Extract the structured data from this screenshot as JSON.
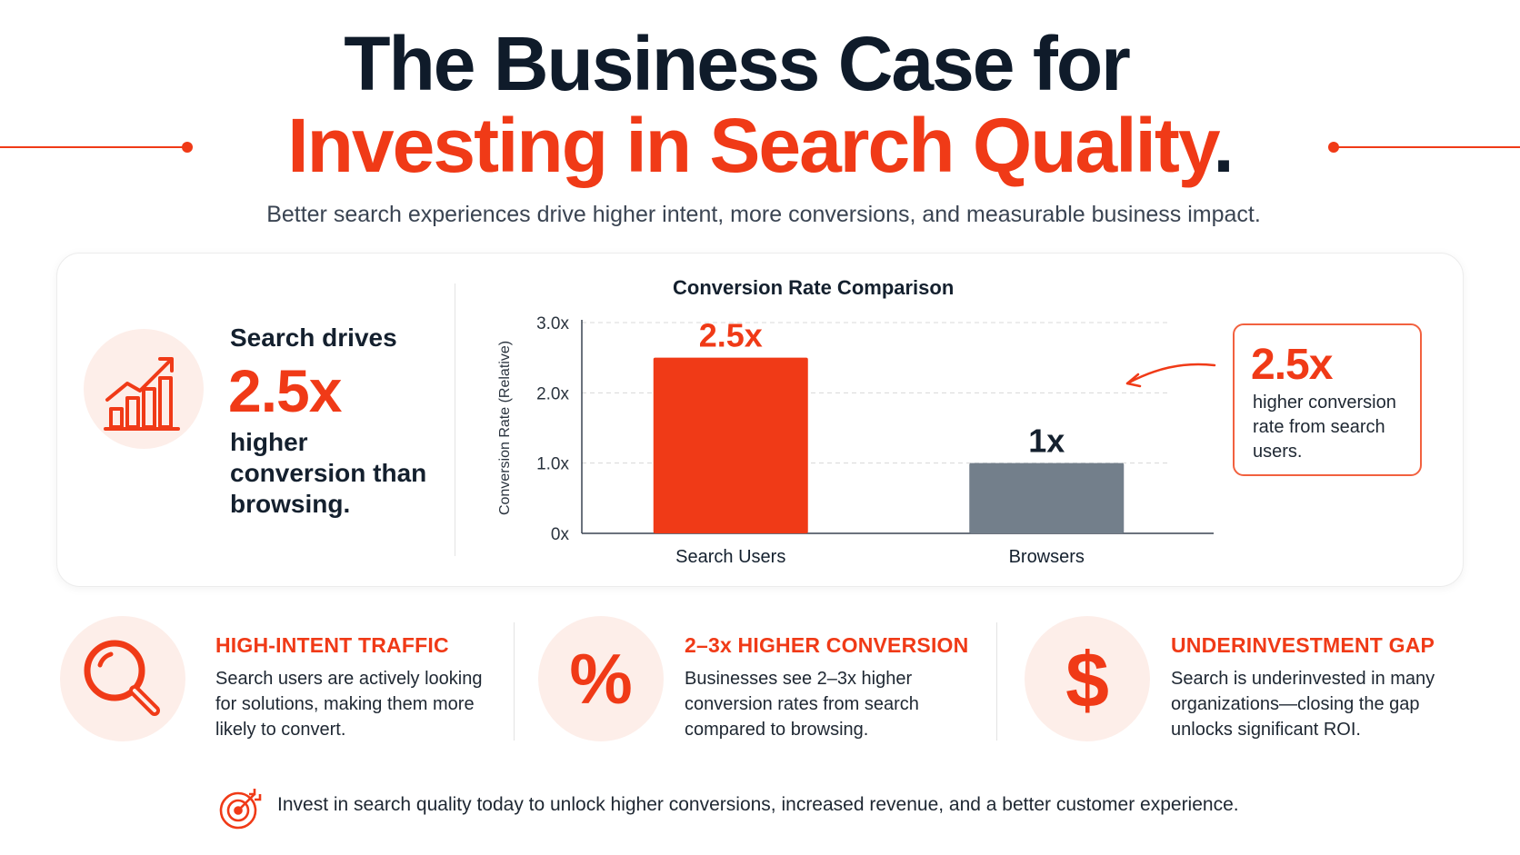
{
  "header": {
    "title_line1": "The Business Case for",
    "title_line2": "Investing in Search Quality",
    "title_punct": ".",
    "subtitle": "Better search experiences drive higher intent, more conversions, and measurable business impact."
  },
  "hero": {
    "label": "Search drives",
    "value": "2.5x",
    "description": "higher conversion than browsing.",
    "icon": "growth-chart-icon"
  },
  "callout": {
    "value": "2.5x",
    "text": "higher conversion rate from search users."
  },
  "chart_data": {
    "type": "bar",
    "title": "Conversion Rate Comparison",
    "ylabel": "Conversion Rate (Relative)",
    "xlabel": "",
    "categories": [
      "Search Users",
      "Browsers"
    ],
    "values": [
      2.5,
      1
    ],
    "data_labels": [
      "2.5x",
      "1x"
    ],
    "colors": [
      "#f03a17",
      "#737f8b"
    ],
    "label_colors": [
      "#f03a17",
      "#14202e"
    ],
    "ylim": [
      0,
      3
    ],
    "yticks": [
      0,
      1,
      2,
      3
    ],
    "ytick_labels": [
      "0x",
      "1.0x",
      "2.0x",
      "3.0x"
    ],
    "grid": true,
    "legend": "none"
  },
  "features": [
    {
      "icon": "magnifier-icon",
      "title": "HIGH-INTENT TRAFFIC",
      "text": "Search users are actively looking for solutions, making them more likely to convert."
    },
    {
      "icon": "percent-icon",
      "title": "2–3x HIGHER CONVERSION",
      "text": "Businesses see 2–3x higher conversion rates from search compared to browsing."
    },
    {
      "icon": "dollar-icon",
      "title": "UNDERINVESTMENT GAP",
      "text": "Search is underinvested in many organizations—closing the gap unlocks significant ROI."
    }
  ],
  "footer": {
    "icon": "target-icon",
    "text": "Invest in search quality today to unlock higher conversions, increased revenue, and a better customer experience."
  },
  "colors": {
    "accent": "#f03a17",
    "dark": "#0f1b2a",
    "gray_bar": "#737f8b",
    "icon_bg": "#fdeee9"
  }
}
